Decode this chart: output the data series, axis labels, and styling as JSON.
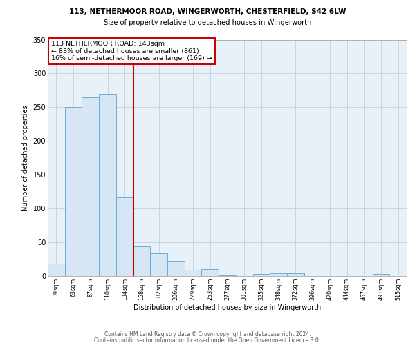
{
  "title1": "113, NETHERMOOR ROAD, WINGERWORTH, CHESTERFIELD, S42 6LW",
  "title2": "Size of property relative to detached houses in Wingerworth",
  "xlabel": "Distribution of detached houses by size in Wingerworth",
  "ylabel": "Number of detached properties",
  "categories": [
    "39sqm",
    "63sqm",
    "87sqm",
    "110sqm",
    "134sqm",
    "158sqm",
    "182sqm",
    "206sqm",
    "229sqm",
    "253sqm",
    "277sqm",
    "301sqm",
    "325sqm",
    "348sqm",
    "372sqm",
    "396sqm",
    "420sqm",
    "444sqm",
    "467sqm",
    "491sqm",
    "515sqm"
  ],
  "values": [
    18,
    250,
    265,
    270,
    116,
    44,
    34,
    22,
    9,
    10,
    1,
    0,
    3,
    4,
    4,
    0,
    0,
    0,
    0,
    3,
    0
  ],
  "bar_color": "#d6e6f5",
  "bar_edge_color": "#6aaed6",
  "red_line_x": 4.5,
  "annotation_line1": "113 NETHERMOOR ROAD: 143sqm",
  "annotation_line2": "← 83% of detached houses are smaller (861)",
  "annotation_line3": "16% of semi-detached houses are larger (169) →",
  "annotation_box_color": "white",
  "annotation_box_edge": "#cc0000",
  "red_line_color": "#cc0000",
  "footer_text1": "Contains HM Land Registry data © Crown copyright and database right 2024.",
  "footer_text2": "Contains public sector information licensed under the Open Government Licence 3.0.",
  "plot_bg_color": "#e8f0f8",
  "grid_color": "#c8d4e0",
  "ylim": [
    0,
    350
  ],
  "yticks": [
    0,
    50,
    100,
    150,
    200,
    250,
    300,
    350
  ]
}
